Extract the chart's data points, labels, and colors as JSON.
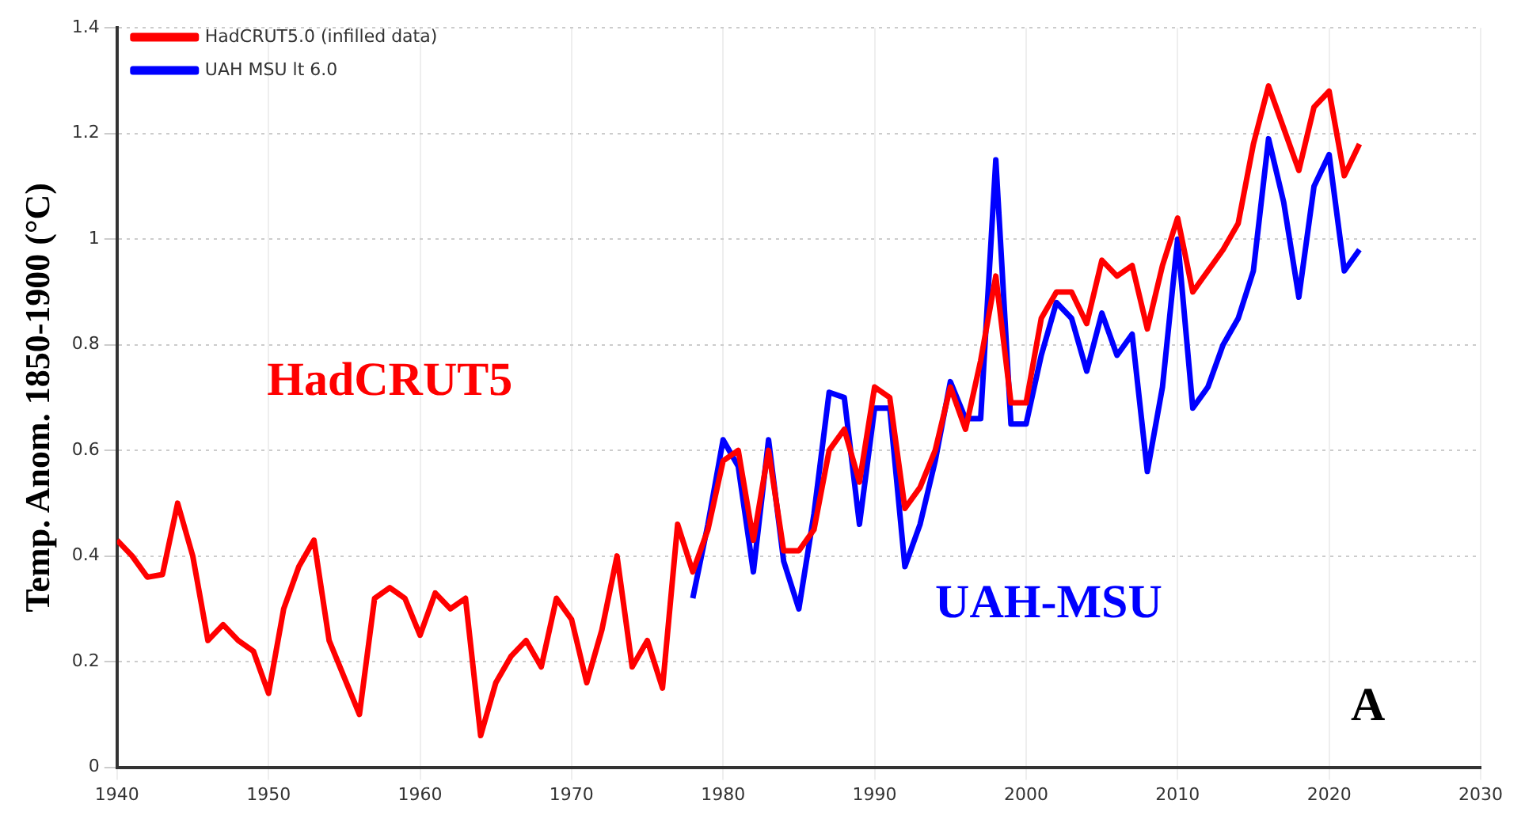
{
  "chart_data": {
    "type": "line",
    "ylabel": "Temp. Anom. 1850-1900 (°C)",
    "xlim": [
      1940,
      2030
    ],
    "xticks": [
      1940,
      1950,
      1960,
      1970,
      1980,
      1990,
      2000,
      2010,
      2020,
      2030
    ],
    "ylim": [
      0,
      1.4
    ],
    "yticks": [
      0,
      0.2,
      0.4,
      0.6,
      0.8,
      1,
      1.2,
      1.4
    ],
    "grid": true,
    "legend": "top left",
    "marker": "none",
    "line_style": "solid",
    "series": [
      {
        "name": "HadCRUT5.0 (infilled data)",
        "color": "#ff0000",
        "x": [
          1940,
          1941,
          1942,
          1943,
          1944,
          1945,
          1946,
          1947,
          1948,
          1949,
          1950,
          1951,
          1952,
          1953,
          1954,
          1955,
          1956,
          1957,
          1958,
          1959,
          1960,
          1961,
          1962,
          1963,
          1964,
          1965,
          1966,
          1967,
          1968,
          1969,
          1970,
          1971,
          1972,
          1973,
          1974,
          1975,
          1976,
          1977,
          1978,
          1979,
          1980,
          1981,
          1982,
          1983,
          1984,
          1985,
          1986,
          1987,
          1988,
          1989,
          1990,
          1991,
          1992,
          1993,
          1994,
          1995,
          1996,
          1997,
          1998,
          1999,
          2000,
          2001,
          2002,
          2003,
          2004,
          2005,
          2006,
          2007,
          2008,
          2009,
          2010,
          2011,
          2012,
          2013,
          2014,
          2015,
          2016,
          2017,
          2018,
          2019,
          2020,
          2021,
          2022
        ],
        "values": [
          0.43,
          0.4,
          0.36,
          0.365,
          0.5,
          0.4,
          0.24,
          0.27,
          0.24,
          0.22,
          0.14,
          0.3,
          0.38,
          0.43,
          0.24,
          0.17,
          0.1,
          0.32,
          0.34,
          0.32,
          0.25,
          0.33,
          0.3,
          0.32,
          0.06,
          0.16,
          0.21,
          0.24,
          0.19,
          0.32,
          0.28,
          0.16,
          0.26,
          0.4,
          0.19,
          0.24,
          0.15,
          0.46,
          0.37,
          0.45,
          0.58,
          0.6,
          0.43,
          0.6,
          0.41,
          0.41,
          0.45,
          0.6,
          0.64,
          0.54,
          0.72,
          0.7,
          0.49,
          0.53,
          0.6,
          0.72,
          0.64,
          0.77,
          0.93,
          0.69,
          0.69,
          0.85,
          0.9,
          0.9,
          0.84,
          0.96,
          0.93,
          0.95,
          0.83,
          0.95,
          1.04,
          0.9,
          0.94,
          0.98,
          1.03,
          1.18,
          1.29,
          1.21,
          1.13,
          1.25,
          1.28,
          1.12,
          1.18
        ]
      },
      {
        "name": "UAH MSU lt 6.0",
        "color": "#0000ff",
        "x": [
          1978,
          1979,
          1980,
          1981,
          1982,
          1983,
          1984,
          1985,
          1986,
          1987,
          1988,
          1989,
          1990,
          1991,
          1992,
          1993,
          1994,
          1995,
          1996,
          1997,
          1998,
          1999,
          2000,
          2001,
          2002,
          2003,
          2004,
          2005,
          2006,
          2007,
          2008,
          2009,
          2010,
          2011,
          2012,
          2013,
          2014,
          2015,
          2016,
          2017,
          2018,
          2019,
          2020,
          2021,
          2022
        ],
        "values": [
          0.32,
          0.46,
          0.62,
          0.57,
          0.37,
          0.62,
          0.39,
          0.3,
          0.48,
          0.71,
          0.7,
          0.46,
          0.68,
          0.68,
          0.38,
          0.46,
          0.58,
          0.73,
          0.66,
          0.66,
          1.15,
          0.65,
          0.65,
          0.78,
          0.88,
          0.85,
          0.75,
          0.86,
          0.78,
          0.82,
          0.56,
          0.72,
          1.0,
          0.68,
          0.72,
          0.8,
          0.85,
          0.94,
          1.19,
          1.07,
          0.89,
          1.1,
          1.16,
          0.94,
          0.98
        ]
      }
    ],
    "annotations": [
      "HadCRUT5",
      "UAH-MSU",
      "A"
    ]
  }
}
